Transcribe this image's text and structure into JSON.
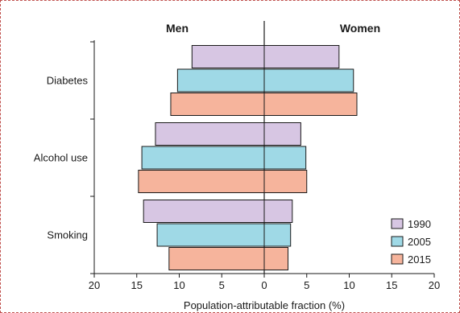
{
  "chart_data": {
    "type": "bar",
    "orientation": "horizontal-diverging",
    "panels": {
      "left": "Men",
      "right": "Women"
    },
    "categories": [
      "Diabetes",
      "Alcohol use",
      "Smoking"
    ],
    "series": [
      {
        "name": "1990",
        "color": "#d7c6e3",
        "men": [
          8.5,
          12.8,
          14.2
        ],
        "women": [
          8.8,
          4.3,
          3.3
        ]
      },
      {
        "name": "2005",
        "color": "#9fd9e6",
        "men": [
          10.2,
          14.4,
          12.6
        ],
        "women": [
          10.5,
          4.9,
          3.1
        ]
      },
      {
        "name": "2015",
        "color": "#f6b49c",
        "men": [
          11.0,
          14.8,
          11.2
        ],
        "women": [
          10.9,
          5.0,
          2.8
        ]
      }
    ],
    "xlabel": "Population-attributable fraction (%)",
    "xlim": [
      -20,
      20
    ],
    "xticks": [
      -20,
      -15,
      -10,
      -5,
      0,
      5,
      10,
      15,
      20
    ],
    "xtick_labels": [
      "20",
      "15",
      "10",
      "5",
      "0",
      "5",
      "10",
      "15",
      "20"
    ],
    "legend": "bottom-right"
  }
}
